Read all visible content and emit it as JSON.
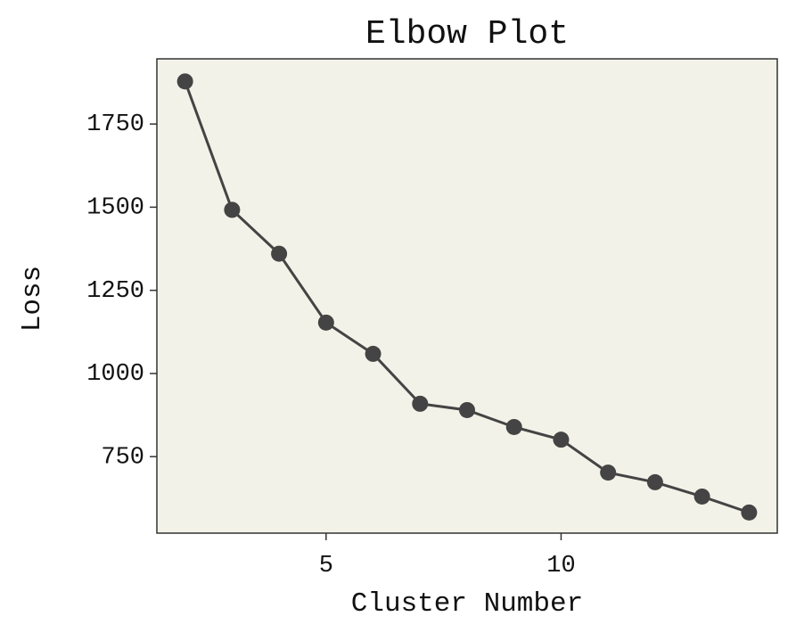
{
  "chart_data": {
    "type": "line",
    "title": "Elbow Plot",
    "x_label": "Cluster Number",
    "y_label": "Loss",
    "x": [
      2,
      3,
      4,
      5,
      6,
      7,
      8,
      9,
      10,
      11,
      12,
      13,
      14
    ],
    "series": [
      {
        "name": "Loss",
        "color": "#444444",
        "values": [
          1878,
          1492,
          1360,
          1153,
          1059,
          909,
          890,
          839,
          801,
          702,
          673,
          630,
          582
        ]
      }
    ],
    "xlim": [
      1.4,
      14.6
    ],
    "xticks": [
      5,
      10
    ],
    "ylim": [
      520,
      1946
    ],
    "yticks": [
      750,
      1000,
      1250,
      1500,
      1750
    ],
    "background": "#f2f2e8",
    "markers": true
  }
}
